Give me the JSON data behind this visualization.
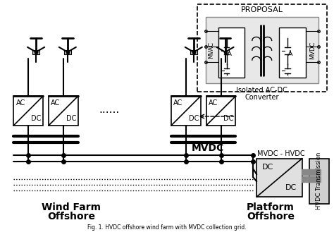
{
  "title": "Fig. 1. HVDC offshore wind farm with MVDC collection grid.",
  "bg_color": "#ffffff",
  "wind_farm_label": [
    "Wind Farm",
    "Offshore"
  ],
  "platform_label": [
    "Platform",
    "Offshore"
  ],
  "mvdc_label": "MVDC",
  "mvdc_hvdc_label": "MVDC - HVDC",
  "proposal_label": "PROPOSAL",
  "converter_label": [
    "Isolated AC-DC",
    "Converter"
  ],
  "hvdc_label": "HVDC Transmission",
  "ac_dc_labels": [
    "AC",
    "DC"
  ],
  "dc_dc_labels": [
    "DC",
    "DC"
  ],
  "mvac_label": "MVAC",
  "mvdc_side_label": "MVDC"
}
